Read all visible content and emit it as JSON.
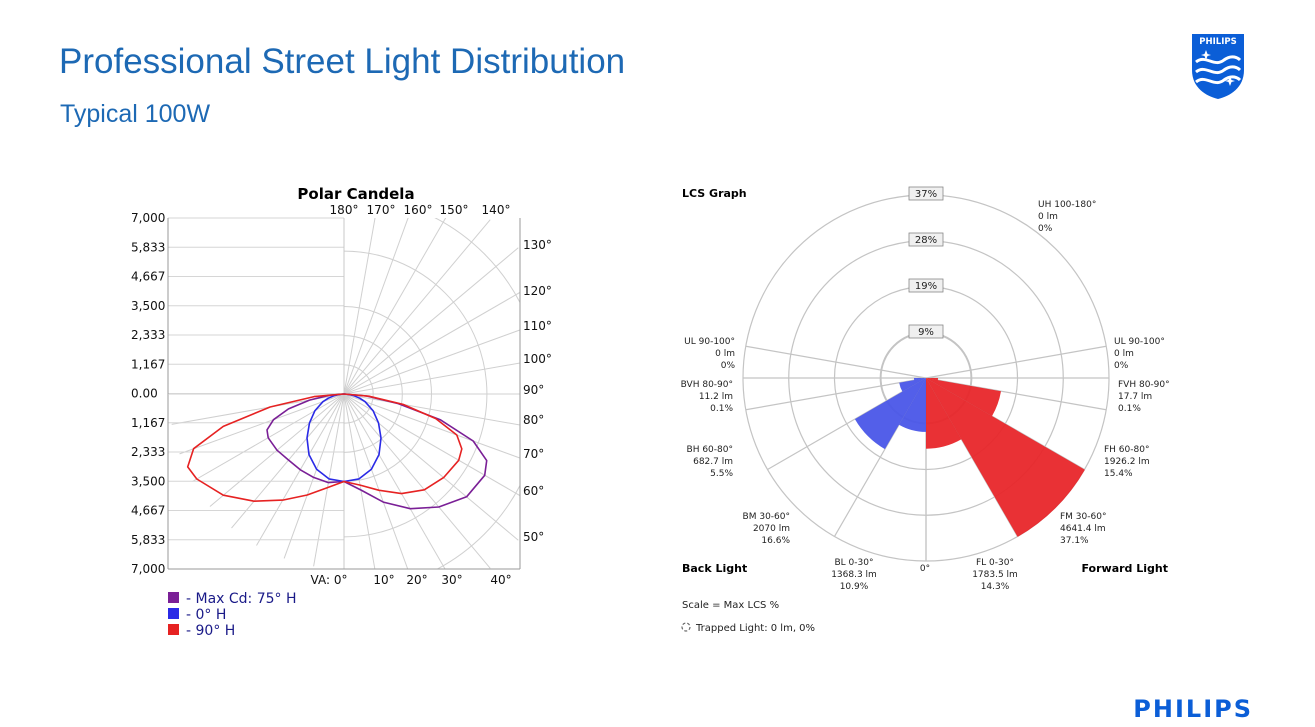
{
  "page": {
    "title": "Professional Street Light Distribution",
    "subtitle": "Typical 100W",
    "brand_word": "PHILIPS",
    "shield_text": "PHILIPS",
    "brand_color": "#1d69b4",
    "logo_color": "#0b5ed7"
  },
  "chart_data": [
    {
      "type": "polar",
      "title": "Polar Candela",
      "axis_labels": [
        "7,000",
        "5,833",
        "4,667",
        "3,500",
        "2,333",
        "1,167",
        "0.00",
        "1,167",
        "2,333",
        "3,500",
        "4,667",
        "5,833",
        "7,000"
      ],
      "rlim": [
        0,
        7000
      ],
      "angle_labels_top": [
        "180°",
        "170°",
        "160°",
        "150°",
        "140°"
      ],
      "angle_labels_right": [
        "130°",
        "120°",
        "110°",
        "100°",
        "90°",
        "80°",
        "70°",
        "60°",
        "50°"
      ],
      "angle_labels_bottom": [
        "VA: 0°",
        "10°",
        "20°",
        "30°",
        "40°"
      ],
      "grid": true,
      "series": [
        {
          "name": "- Max Cd: 75° H",
          "color": "#7a1f96",
          "angles": [
            0,
            10,
            20,
            30,
            40,
            50,
            60,
            65,
            70,
            75,
            80,
            85,
            90
          ],
          "left": [
            3500,
            3600,
            3550,
            3500,
            3450,
            3500,
            3500,
            3400,
            3000,
            2300,
            1400,
            600,
            0
          ],
          "right": [
            3500,
            3900,
            4600,
            5300,
            5900,
            6400,
            6500,
            6300,
            5500,
            4000,
            2200,
            900,
            0
          ]
        },
        {
          "name": "- 0° H",
          "color": "#2a2ae6",
          "angles": [
            0,
            10,
            20,
            30,
            40,
            50,
            60,
            70,
            75,
            80,
            85,
            90
          ],
          "left": [
            3500,
            3450,
            3200,
            2800,
            2300,
            1800,
            1350,
            900,
            650,
            400,
            180,
            0
          ],
          "right": [
            3500,
            3450,
            3200,
            2800,
            2300,
            1800,
            1350,
            900,
            650,
            400,
            180,
            0
          ]
        },
        {
          "name": "- 90° H",
          "color": "#e62222",
          "angles": [
            0,
            10,
            20,
            30,
            40,
            50,
            60,
            65,
            70,
            75,
            80,
            85,
            90
          ],
          "left": [
            3500,
            3800,
            4300,
            4900,
            5600,
            6300,
            6800,
            6900,
            6400,
            5000,
            3000,
            1200,
            0
          ],
          "right": [
            3500,
            3700,
            4100,
            4600,
            5000,
            5200,
            5300,
            5200,
            4800,
            3800,
            2400,
            1000,
            0
          ]
        }
      ]
    },
    {
      "type": "polar-area",
      "title": "LCS Graph",
      "ring_labels": [
        "37%",
        "28%",
        "19%",
        "9%"
      ],
      "rlim": [
        0,
        37
      ],
      "bottom_angle_label": "0°",
      "zones": [
        {
          "code": "FL",
          "label": "FL 0-30°",
          "lumens": "1783.5 lm",
          "pct_label": "14.3%",
          "pct": 14.3,
          "side": "forward",
          "from": 0,
          "to": 30
        },
        {
          "code": "FM",
          "label": "FM 30-60°",
          "lumens": "4641.4 lm",
          "pct_label": "37.1%",
          "pct": 37.1,
          "side": "forward",
          "from": 30,
          "to": 60
        },
        {
          "code": "FH",
          "label": "FH 60-80°",
          "lumens": "1926.2 lm",
          "pct_label": "15.4%",
          "pct": 15.4,
          "side": "forward",
          "from": 60,
          "to": 80
        },
        {
          "code": "FVH",
          "label": "FVH 80-90°",
          "lumens": "17.7 lm",
          "pct_label": "0.1%",
          "pct": 0.1,
          "side": "forward",
          "from": 80,
          "to": 90
        },
        {
          "code": "ULF",
          "label": "UL 90-100°",
          "lumens": "0 lm",
          "pct_label": "0%",
          "pct": 0,
          "side": "forward",
          "from": 90,
          "to": 100
        },
        {
          "code": "UH",
          "label": "UH 100-180°",
          "lumens": "0 lm",
          "pct_label": "0%",
          "pct": 0,
          "side": "forward",
          "from": 100,
          "to": 180
        },
        {
          "code": "BL",
          "label": "BL 0-30°",
          "lumens": "1368.3 lm",
          "pct_label": "10.9%",
          "pct": 10.9,
          "side": "back",
          "from": 0,
          "to": 30
        },
        {
          "code": "BM",
          "label": "BM 30-60°",
          "lumens": "2070 lm",
          "pct_label": "16.6%",
          "pct": 16.6,
          "side": "back",
          "from": 30,
          "to": 60
        },
        {
          "code": "BH",
          "label": "BH 60-80°",
          "lumens": "682.7 lm",
          "pct_label": "5.5%",
          "pct": 5.5,
          "side": "back",
          "from": 60,
          "to": 80
        },
        {
          "code": "BVH",
          "label": "BVH 80-90°",
          "lumens": "11.2 lm",
          "pct_label": "0.1%",
          "pct": 0.1,
          "side": "back",
          "from": 80,
          "to": 90
        },
        {
          "code": "ULB",
          "label": "UL 90-100°",
          "lumens": "0 lm",
          "pct_label": "0%",
          "pct": 0,
          "side": "back",
          "from": 90,
          "to": 100
        }
      ],
      "back_label": "Back Light",
      "forward_label": "Forward Light",
      "scale_note": "Scale = Max LCS %",
      "trapped_note": "Trapped Light: 0 lm, 0%",
      "forward_color": "#e8262a",
      "back_color": "#4a56e8"
    }
  ]
}
